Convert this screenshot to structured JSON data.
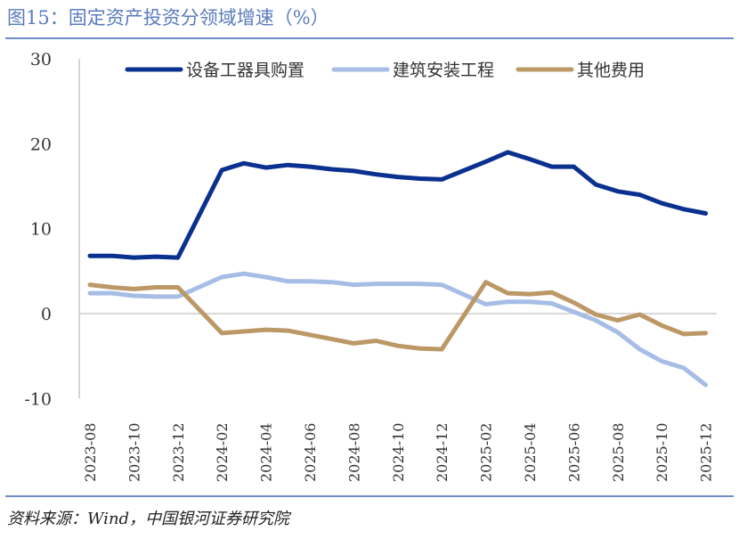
{
  "title": "图15：固定资产投资分领域增速（%）",
  "source": "资料来源：Wind，中国银河证券研究院",
  "chart_data": {
    "type": "line",
    "title": "",
    "xlabel": "",
    "ylabel": "",
    "ylim": [
      -10,
      30
    ],
    "yticks": [
      30,
      20,
      10,
      0,
      -10
    ],
    "xtick_labels": [
      "2023-08",
      "2023-10",
      "2023-12",
      "2024-02",
      "2024-04",
      "2024-06",
      "2024-08",
      "2024-10",
      "2024-12",
      "2025-02",
      "2025-04",
      "2025-06",
      "2025-08",
      "2025-10",
      "2025-12"
    ],
    "legend_position": "top",
    "grid": false,
    "x": [
      "2023-08",
      "2023-09",
      "2023-10",
      "2023-11",
      "2023-12",
      "2024-02",
      "2024-03",
      "2024-04",
      "2024-05",
      "2024-06",
      "2024-07",
      "2024-08",
      "2024-09",
      "2024-10",
      "2024-11",
      "2024-12",
      "2025-02",
      "2025-03",
      "2025-04",
      "2025-05",
      "2025-06",
      "2025-07",
      "2025-08",
      "2025-09",
      "2025-10",
      "2025-11",
      "2025-12"
    ],
    "series": [
      {
        "name": "设备工器具购置",
        "color": "#0a318f",
        "values": [
          6.8,
          6.8,
          6.6,
          6.7,
          6.6,
          16.9,
          17.7,
          17.2,
          17.5,
          17.3,
          17.0,
          16.8,
          16.4,
          16.1,
          15.9,
          15.8,
          17.9,
          19.0,
          18.2,
          17.3,
          17.3,
          15.2,
          14.4,
          14.0,
          13.0,
          12.3,
          11.8
        ]
      },
      {
        "name": "建筑安装工程",
        "color": "#a6bde6",
        "values": [
          2.4,
          2.4,
          2.1,
          2.0,
          2.0,
          4.3,
          4.7,
          4.3,
          3.8,
          3.8,
          3.7,
          3.4,
          3.5,
          3.5,
          3.5,
          3.4,
          1.1,
          1.4,
          1.4,
          1.2,
          0.2,
          -0.8,
          -2.2,
          -4.2,
          -5.6,
          -6.4,
          -8.4
        ]
      },
      {
        "name": "其他费用",
        "color": "#bb9866",
        "values": [
          3.4,
          3.1,
          2.9,
          3.1,
          3.1,
          -2.3,
          -2.1,
          -1.9,
          -2.0,
          -2.5,
          -3.0,
          -3.5,
          -3.2,
          -3.8,
          -4.1,
          -4.2,
          3.7,
          2.4,
          2.3,
          2.5,
          1.3,
          -0.1,
          -0.8,
          -0.1,
          -1.4,
          -2.4,
          -2.3
        ]
      }
    ]
  }
}
